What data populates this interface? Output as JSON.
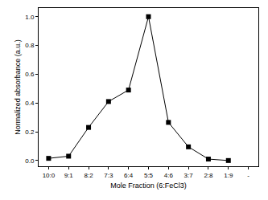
{
  "chart_data": {
    "type": "line",
    "x_label": "Mole Fraction (6:FeCl3)",
    "y_label": "Normalized absorbance (a.u.)",
    "categories": [
      "10:0",
      "9:1",
      "8:2",
      "7:3",
      "6:4",
      "5:5",
      "4:6",
      "3:7",
      "2:8",
      "1:9",
      "-"
    ],
    "values": [
      0.015,
      0.03,
      0.23,
      0.41,
      0.49,
      1.0,
      0.265,
      0.095,
      0.01,
      0.0,
      null
    ],
    "color": "#000000",
    "marker": "square",
    "line_style": "solid",
    "ylim": [
      -0.04,
      1.06
    ],
    "yticks": [
      {
        "value": 0,
        "label": "0.0"
      },
      {
        "value": 0.2,
        "label": "0.2"
      },
      {
        "value": 0.4,
        "label": "0.4"
      },
      {
        "value": 0.6,
        "label": "0.6"
      },
      {
        "value": 0.8,
        "label": "0.8"
      },
      {
        "value": 1.0,
        "label": "1.0"
      }
    ],
    "grid": false
  }
}
